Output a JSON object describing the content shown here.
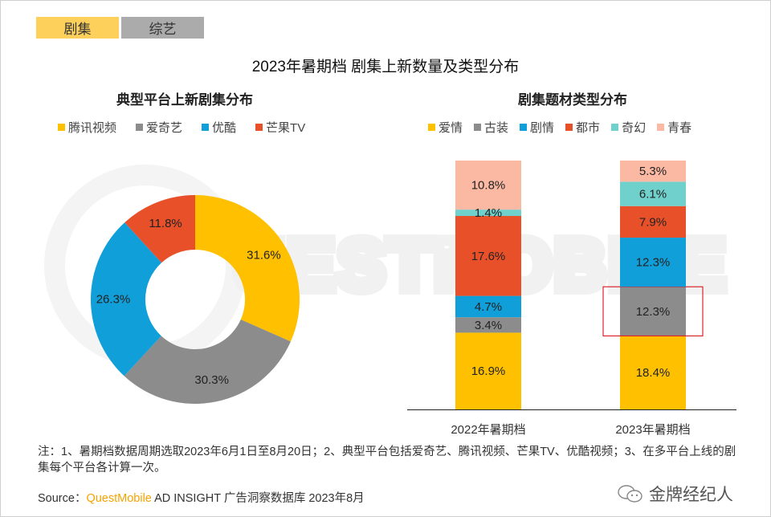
{
  "tabs": [
    {
      "label": "剧集",
      "active": true
    },
    {
      "label": "综艺",
      "active": false
    }
  ],
  "title": "2023年暑期档 剧集上新数量及类型分布",
  "watermark": "QUESTMOBILE",
  "chart_data": [
    {
      "type": "pie",
      "subtype": "donut",
      "title": "典型平台上新剧集分布",
      "legend_position": "top",
      "categories": [
        "腾讯视频",
        "爱奇艺",
        "优酷",
        "芒果TV"
      ],
      "values": [
        31.6,
        30.3,
        26.3,
        11.8
      ],
      "labels": [
        "31.6%",
        "30.3%",
        "26.3%",
        "11.8%"
      ],
      "colors": [
        "#ffc000",
        "#8c8c8c",
        "#109fd8",
        "#e8502a"
      ]
    },
    {
      "type": "bar",
      "subtype": "stacked-normalized",
      "title": "剧集题材类型分布",
      "legend_position": "top",
      "categories": [
        "2022年暑期档",
        "2023年暑期档"
      ],
      "series": [
        {
          "name": "爱情",
          "values": [
            16.9,
            18.4
          ],
          "labels": [
            "16.9%",
            "18.4%"
          ],
          "color": "#ffc000"
        },
        {
          "name": "古装",
          "values": [
            3.4,
            12.3
          ],
          "labels": [
            "3.4%",
            "12.3%"
          ],
          "color": "#8c8c8c"
        },
        {
          "name": "剧情",
          "values": [
            4.7,
            12.3
          ],
          "labels": [
            "4.7%",
            "12.3%"
          ],
          "color": "#109fd8"
        },
        {
          "name": "都市",
          "values": [
            17.6,
            7.9
          ],
          "labels": [
            "17.6%",
            "7.9%"
          ],
          "color": "#e8502a"
        },
        {
          "name": "奇幻",
          "values": [
            1.4,
            6.1
          ],
          "labels": [
            "1.4%",
            "6.1%"
          ],
          "color": "#6fd0cc"
        },
        {
          "name": "青春",
          "values": [
            10.8,
            5.3
          ],
          "labels": [
            "10.8%",
            "5.3%"
          ],
          "color": "#fbb8a3"
        }
      ],
      "highlight": {
        "category": "2023年暑期档",
        "series": "古装",
        "color": "#d9262c"
      }
    }
  ],
  "footer": {
    "note": "注：1、暑期档数据周期选取2023年6月1日至8月20日；2、典型平台包括爱奇艺、腾讯视频、芒果TV、优酷视频；3、在多平台上线的剧集每个平台各计算一次。",
    "source_prefix": "Source：",
    "source_brand": "QuestMobile",
    "source_rest": " AD INSIGHT 广告洞察数据库 2023年8月",
    "wechat_account": "金牌经纪人"
  }
}
